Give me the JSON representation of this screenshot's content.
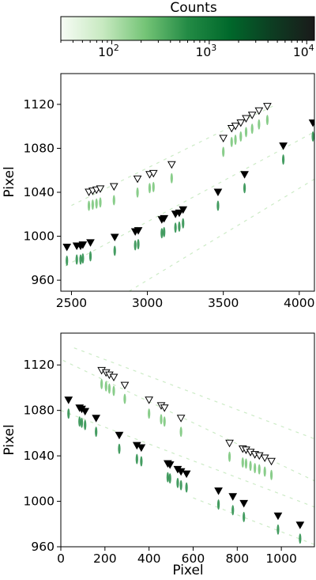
{
  "colorbar": {
    "label": "Counts",
    "scale": "log",
    "range": [
      30,
      12000
    ],
    "ticks": [
      {
        "value": 100,
        "base": "10",
        "exp": "2"
      },
      {
        "value": 1000,
        "base": "10",
        "exp": "3"
      },
      {
        "value": 10000,
        "base": "10",
        "exp": "4"
      }
    ],
    "colors": [
      "#f7fcf5",
      "#c7e9c0",
      "#74c476",
      "#238b45",
      "#00682b",
      "#0d3d22",
      "#1a1a1a"
    ]
  },
  "chart_data": [
    {
      "type": "scatter",
      "ylabel": "Pixel",
      "xlabel": "",
      "xlim": [
        2430,
        4100
      ],
      "ylim": [
        950,
        1148
      ],
      "xticks": [
        "2500",
        "3000",
        "3500",
        "4000"
      ],
      "yticks": [
        "960",
        "1000",
        "1040",
        "1080",
        "1120"
      ],
      "series": [
        {
          "marker": "filled-triangle-down",
          "x": [
            2470,
            2535,
            2560,
            2575,
            2625,
            2785,
            2920,
            2940,
            3095,
            3110,
            3185,
            3210,
            3235,
            3465,
            3640,
            3895,
            4090
          ],
          "y": [
            990,
            991,
            991,
            992,
            994,
            999,
            1004,
            1005,
            1015,
            1016,
            1020,
            1021,
            1024,
            1040,
            1056,
            1082,
            1103
          ]
        },
        {
          "marker": "open-triangle-down",
          "x": [
            2615,
            2640,
            2665,
            2690,
            2780,
            2935,
            3015,
            3040,
            3160,
            3500,
            3555,
            3580,
            3615,
            3650,
            3690,
            3735,
            3790
          ],
          "y": [
            1040,
            1041,
            1042,
            1043,
            1045,
            1052,
            1056,
            1057,
            1065,
            1089,
            1098,
            1100,
            1103,
            1107,
            1110,
            1114,
            1118
          ]
        }
      ],
      "traces": [
        {
          "x": [
            2460,
            4100
          ],
          "y": [
            973,
            1095
          ]
        },
        {
          "x": [
            2500,
            3850
          ],
          "y": [
            1028,
            1120
          ]
        },
        {
          "x": [
            2880,
            4100
          ],
          "y": [
            950,
            1052
          ]
        }
      ]
    },
    {
      "type": "scatter",
      "ylabel": "Pixel",
      "xlabel": "Pixel",
      "xlim": [
        0,
        1150
      ],
      "ylim": [
        960,
        1148
      ],
      "xticks": [
        "0",
        "200",
        "400",
        "600",
        "800",
        "1000"
      ],
      "yticks": [
        "960",
        "1000",
        "1040",
        "1080",
        "1120"
      ],
      "series": [
        {
          "marker": "filled-triangle-down",
          "x": [
            35,
            85,
            95,
            110,
            160,
            265,
            345,
            365,
            485,
            495,
            530,
            545,
            570,
            715,
            780,
            830,
            985,
            1085
          ],
          "y": [
            1089,
            1082,
            1081,
            1079,
            1073,
            1058,
            1049,
            1047,
            1033,
            1032,
            1028,
            1026,
            1024,
            1009,
            1004,
            998,
            987,
            979
          ]
        },
        {
          "marker": "open-triangle-down",
          "x": [
            185,
            205,
            220,
            240,
            290,
            400,
            455,
            470,
            545,
            765,
            825,
            840,
            860,
            880,
            900,
            925,
            955
          ],
          "y": [
            1115,
            1113,
            1111,
            1109,
            1102,
            1089,
            1084,
            1082,
            1073,
            1051,
            1046,
            1045,
            1043,
            1041,
            1040,
            1038,
            1035
          ]
        }
      ],
      "traces": [
        {
          "x": [
            0,
            1150
          ],
          "y": [
            1080,
            995
          ]
        },
        {
          "x": [
            60,
            1150
          ],
          "y": [
            1135,
            1055
          ]
        },
        {
          "x": [
            10,
            1150
          ],
          "y": [
            1124,
            1018
          ]
        },
        {
          "x": [
            600,
            1150
          ],
          "y": [
            1003,
            962
          ]
        }
      ]
    }
  ]
}
